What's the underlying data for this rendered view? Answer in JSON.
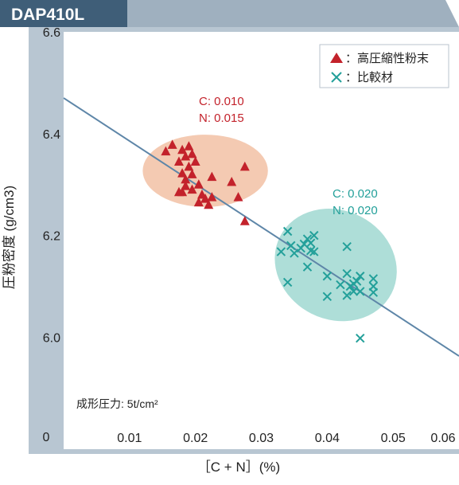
{
  "header": {
    "title": "DAP410L"
  },
  "colors": {
    "header_bar": "#3f5e78",
    "header_tail": "#9fb0bf",
    "axis_frame": "#b8c6d2",
    "plot_bg": "#ffffff",
    "trend_line": "#5e86a8",
    "series_high": "#c3222b",
    "series_comp": "#23a09a",
    "ellipse_high": "#f0b898",
    "ellipse_comp": "#93d3cb"
  },
  "chart_data": {
    "type": "scatter",
    "title": "DAP410L",
    "xlabel": "［C + N］(%)",
    "ylabel": "圧粉密度 (g/cm3)",
    "xlim": [
      0,
      0.06
    ],
    "ylim": [
      5.78,
      6.6
    ],
    "x_ticks": [
      {
        "value": 0.01,
        "label": "0.01"
      },
      {
        "value": 0.02,
        "label": "0.02"
      },
      {
        "value": 0.03,
        "label": "0.03"
      },
      {
        "value": 0.04,
        "label": "0.04"
      },
      {
        "value": 0.05,
        "label": "0.05"
      },
      {
        "value": 0.06,
        "label": "0.06"
      }
    ],
    "y_ticks": [
      {
        "value": 6.0,
        "label": "6.0"
      },
      {
        "value": 6.2,
        "label": "6.2"
      },
      {
        "value": 6.4,
        "label": "6.4"
      },
      {
        "value": 6.6,
        "label": "6.6"
      }
    ],
    "origin_label": "0",
    "grid": false,
    "legend_position": "top-right",
    "series": [
      {
        "name": "：高圧縮性粉末",
        "marker": "triangle",
        "color": "#c3222b",
        "points": [
          [
            0.0155,
            6.365
          ],
          [
            0.0165,
            6.378
          ],
          [
            0.0175,
            6.345
          ],
          [
            0.018,
            6.368
          ],
          [
            0.0185,
            6.355
          ],
          [
            0.019,
            6.375
          ],
          [
            0.0195,
            6.36
          ],
          [
            0.02,
            6.345
          ],
          [
            0.019,
            6.335
          ],
          [
            0.018,
            6.322
          ],
          [
            0.0185,
            6.31
          ],
          [
            0.0195,
            6.32
          ],
          [
            0.0205,
            6.3
          ],
          [
            0.0185,
            6.297
          ],
          [
            0.018,
            6.285
          ],
          [
            0.0175,
            6.285
          ],
          [
            0.0195,
            6.29
          ],
          [
            0.021,
            6.28
          ],
          [
            0.0215,
            6.272
          ],
          [
            0.0225,
            6.275
          ],
          [
            0.0205,
            6.265
          ],
          [
            0.022,
            6.26
          ],
          [
            0.0225,
            6.315
          ],
          [
            0.0255,
            6.305
          ],
          [
            0.0265,
            6.275
          ],
          [
            0.0275,
            6.335
          ],
          [
            0.0275,
            6.228
          ]
        ]
      },
      {
        "name": "：比較材",
        "marker": "x",
        "color": "#23a09a",
        "points": [
          [
            0.033,
            6.168
          ],
          [
            0.034,
            6.208
          ],
          [
            0.0345,
            6.18
          ],
          [
            0.035,
            6.165
          ],
          [
            0.036,
            6.175
          ],
          [
            0.0365,
            6.183
          ],
          [
            0.037,
            6.193
          ],
          [
            0.0375,
            6.185
          ],
          [
            0.0375,
            6.17
          ],
          [
            0.038,
            6.2
          ],
          [
            0.038,
            6.168
          ],
          [
            0.037,
            6.138
          ],
          [
            0.034,
            6.108
          ],
          [
            0.04,
            6.12
          ],
          [
            0.04,
            6.08
          ],
          [
            0.042,
            6.103
          ],
          [
            0.043,
            6.178
          ],
          [
            0.043,
            6.125
          ],
          [
            0.0435,
            6.1
          ],
          [
            0.044,
            6.105
          ],
          [
            0.0445,
            6.11
          ],
          [
            0.044,
            6.09
          ],
          [
            0.045,
            6.12
          ],
          [
            0.045,
            6.09
          ],
          [
            0.043,
            6.082
          ],
          [
            0.047,
            6.115
          ],
          [
            0.047,
            6.1
          ],
          [
            0.047,
            6.088
          ],
          [
            0.045,
            5.998
          ]
        ]
      }
    ],
    "trend_line": {
      "x": [
        0.0,
        0.06
      ],
      "y": [
        6.47,
        5.963
      ]
    },
    "ellipses": [
      {
        "series": "high",
        "cx": 0.0215,
        "cy": 6.327,
        "rx": 0.0095,
        "ry": 0.071
      },
      {
        "series": "comp",
        "cx": 0.0413,
        "cy": 6.142,
        "rx": 0.0095,
        "ry": 0.107,
        "rotate_deg": 27
      }
    ],
    "annotations": [
      {
        "id": "high_c",
        "text": "C: 0.010",
        "color": "#c3222b"
      },
      {
        "id": "high_n",
        "text": "N: 0.015",
        "color": "#c3222b"
      },
      {
        "id": "comp_c",
        "text": "C: 0.020",
        "color": "#23a09a"
      },
      {
        "id": "comp_n",
        "text": "N: 0.020",
        "color": "#23a09a"
      }
    ],
    "condition_label": "成形圧力: 5t/cm²"
  }
}
